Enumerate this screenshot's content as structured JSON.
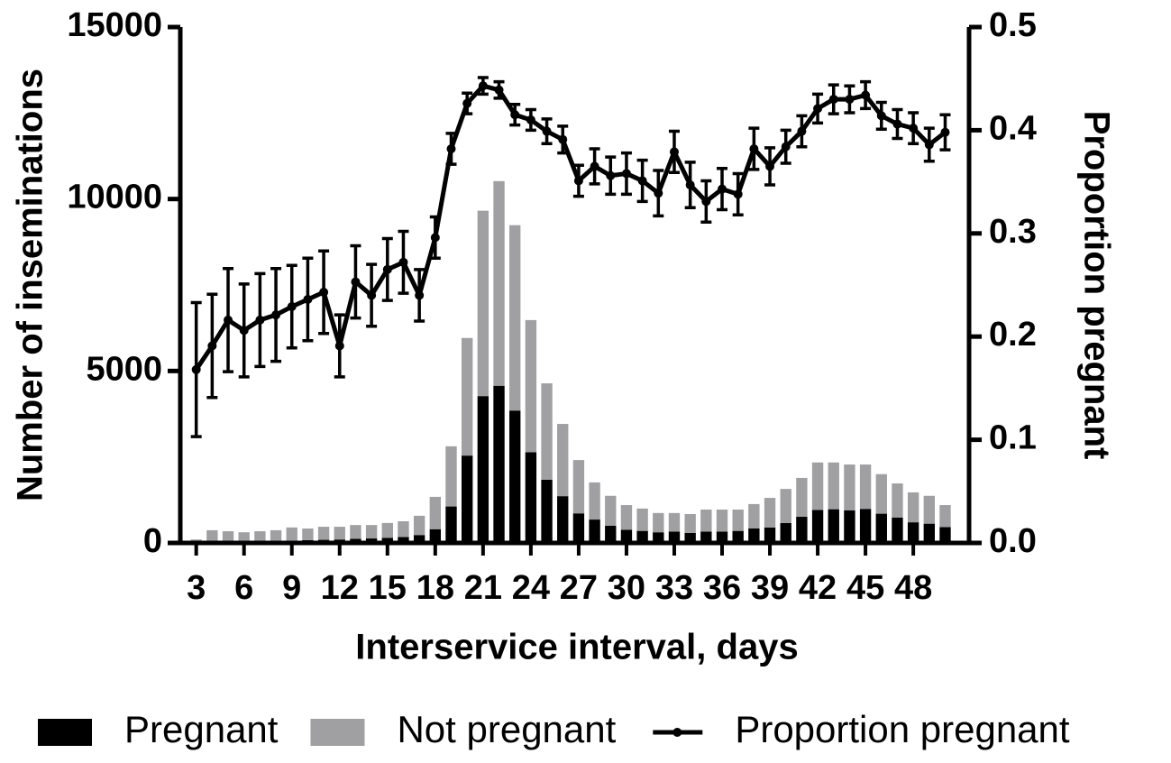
{
  "chart_data": {
    "type": "bar",
    "stacked": true,
    "xlabel": "Interservice interval, days",
    "ylabel": "Number of inseminations",
    "y2label": "Proportion pregnant",
    "x": [
      3,
      4,
      5,
      6,
      7,
      8,
      9,
      10,
      11,
      12,
      13,
      14,
      15,
      16,
      17,
      18,
      19,
      20,
      21,
      22,
      23,
      24,
      25,
      26,
      27,
      28,
      29,
      30,
      31,
      32,
      33,
      34,
      35,
      36,
      37,
      38,
      39,
      40,
      41,
      42,
      43,
      44,
      45,
      46,
      47,
      48,
      49,
      50
    ],
    "xlim": [
      2,
      51.5
    ],
    "xticks": [
      3,
      6,
      9,
      12,
      15,
      18,
      21,
      24,
      27,
      30,
      33,
      36,
      39,
      42,
      45,
      48
    ],
    "ylim": [
      0,
      15000
    ],
    "yticks": [
      0,
      5000,
      10000,
      15000
    ],
    "y2lim": [
      0,
      0.5
    ],
    "y2ticks": [
      {
        "value": 0,
        "label": "0.0"
      },
      0.1,
      0.2,
      0.3,
      0.4,
      0.5
    ],
    "series": [
      {
        "name": "Pregnant",
        "color": "#000000",
        "values": [
          20,
          30,
          40,
          40,
          50,
          60,
          70,
          80,
          90,
          100,
          120,
          130,
          150,
          170,
          230,
          400,
          1060,
          2540,
          4270,
          4570,
          3850,
          2640,
          1840,
          1360,
          860,
          680,
          500,
          380,
          350,
          310,
          330,
          290,
          330,
          330,
          350,
          420,
          450,
          580,
          760,
          960,
          980,
          950,
          990,
          850,
          740,
          600,
          560,
          460
        ]
      },
      {
        "name": "Not pregnant",
        "color": "#a0a0a3",
        "values": [
          80,
          340,
          300,
          270,
          290,
          310,
          380,
          340,
          380,
          370,
          400,
          390,
          430,
          460,
          560,
          940,
          1750,
          3420,
          5390,
          5950,
          5390,
          3840,
          2800,
          2100,
          1550,
          1080,
          870,
          720,
          650,
          560,
          540,
          550,
          640,
          640,
          620,
          710,
          860,
          990,
          1130,
          1380,
          1360,
          1330,
          1290,
          1150,
          990,
          870,
          810,
          640
        ]
      },
      {
        "name": "Proportion pregnant",
        "type": "line",
        "axis": "y2",
        "color": "#000000",
        "values": [
          0.168,
          0.191,
          0.216,
          0.206,
          0.216,
          0.221,
          0.229,
          0.236,
          0.243,
          0.191,
          0.253,
          0.24,
          0.265,
          0.272,
          0.24,
          0.296,
          0.382,
          0.426,
          0.443,
          0.439,
          0.415,
          0.41,
          0.399,
          0.391,
          0.351,
          0.365,
          0.356,
          0.358,
          0.351,
          0.339,
          0.379,
          0.347,
          0.331,
          0.343,
          0.338,
          0.382,
          0.365,
          0.384,
          0.399,
          0.421,
          0.43,
          0.43,
          0.434,
          0.414,
          0.406,
          0.402,
          0.386,
          0.398
        ],
        "errors": [
          0.065,
          0.05,
          0.05,
          0.045,
          0.045,
          0.045,
          0.04,
          0.04,
          0.04,
          0.03,
          0.035,
          0.03,
          0.03,
          0.03,
          0.025,
          0.02,
          0.015,
          0.01,
          0.008,
          0.008,
          0.01,
          0.01,
          0.012,
          0.013,
          0.015,
          0.017,
          0.018,
          0.02,
          0.02,
          0.022,
          0.02,
          0.022,
          0.02,
          0.02,
          0.02,
          0.02,
          0.018,
          0.016,
          0.015,
          0.014,
          0.014,
          0.013,
          0.013,
          0.013,
          0.014,
          0.015,
          0.016,
          0.017
        ]
      }
    ]
  }
}
